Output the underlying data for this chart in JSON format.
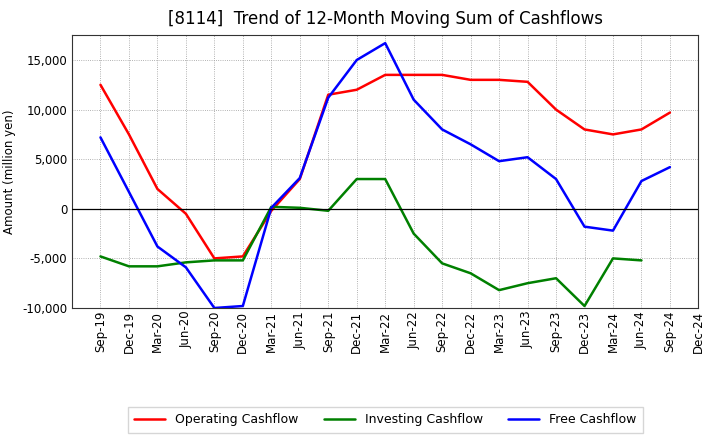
{
  "title": "[8114]  Trend of 12-Month Moving Sum of Cashflows",
  "ylabel": "Amount (million yen)",
  "xlabels": [
    "Sep-19",
    "Dec-19",
    "Mar-20",
    "Jun-20",
    "Sep-20",
    "Dec-20",
    "Mar-21",
    "Jun-21",
    "Sep-21",
    "Dec-21",
    "Mar-22",
    "Jun-22",
    "Sep-22",
    "Dec-22",
    "Mar-23",
    "Jun-23",
    "Sep-23",
    "Dec-23",
    "Mar-24",
    "Jun-24",
    "Sep-24",
    "Dec-24"
  ],
  "operating_cashflow": [
    12500,
    7500,
    2000,
    -500,
    -5000,
    -4800,
    -200,
    3000,
    11500,
    12000,
    13500,
    13500,
    13500,
    13000,
    13000,
    12800,
    10000,
    8000,
    7500,
    8000,
    9700,
    null
  ],
  "investing_cashflow": [
    -4800,
    -5800,
    -5800,
    -5400,
    -5200,
    -5200,
    200,
    100,
    -200,
    3000,
    3000,
    -2500,
    -5500,
    -6500,
    -8200,
    -7500,
    -7000,
    -9800,
    -5000,
    -5200,
    null,
    null
  ],
  "free_cashflow": [
    7200,
    1700,
    -3800,
    -5900,
    -10000,
    -9800,
    100,
    3100,
    11200,
    15000,
    16700,
    11000,
    8000,
    6500,
    4800,
    5200,
    3000,
    -1800,
    -2200,
    2800,
    4200,
    null
  ],
  "ylim": [
    -10000,
    17500
  ],
  "yticks": [
    -10000,
    -5000,
    0,
    5000,
    10000,
    15000
  ],
  "operating_color": "#ff0000",
  "investing_color": "#008000",
  "free_color": "#0000ff",
  "background_color": "#ffffff",
  "grid_color": "#aaaaaa",
  "title_fontsize": 12,
  "axis_fontsize": 8.5,
  "legend_fontsize": 9,
  "linewidth": 1.8
}
